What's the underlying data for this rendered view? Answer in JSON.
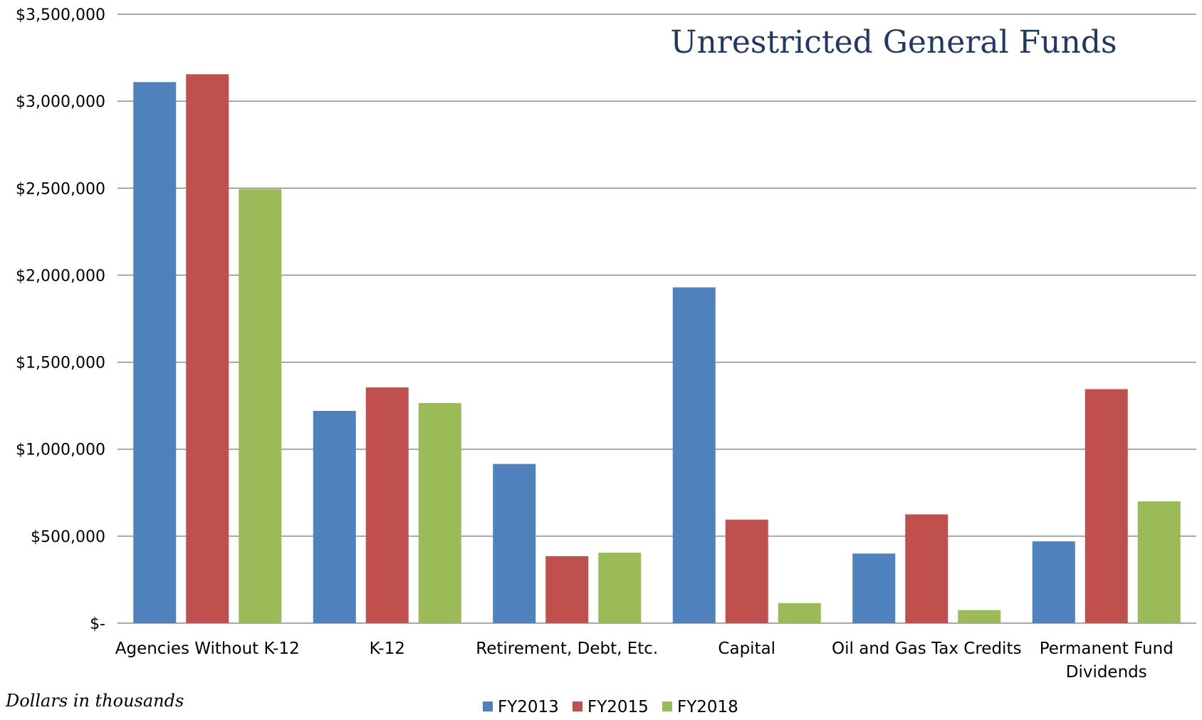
{
  "chart_data": {
    "type": "bar",
    "title": "Unrestricted General Funds",
    "footnote": "Dollars in thousands",
    "ylim": [
      0,
      3500000
    ],
    "yticks": [
      {
        "value": 0,
        "label": "$-"
      },
      {
        "value": 500000,
        "label": "$500,000"
      },
      {
        "value": 1000000,
        "label": "$1,000,000"
      },
      {
        "value": 1500000,
        "label": "$1,500,000"
      },
      {
        "value": 2000000,
        "label": "$2,000,000"
      },
      {
        "value": 2500000,
        "label": "$2,500,000"
      },
      {
        "value": 3000000,
        "label": "$3,000,000"
      },
      {
        "value": 3500000,
        "label": "$3,500,000"
      }
    ],
    "grid": true,
    "legend_position": "bottom",
    "categories": [
      "Agencies Without K-12",
      "K-12",
      "Retirement, Debt, Etc.",
      "Capital",
      "Oil and Gas Tax Credits",
      "Permanent Fund Dividends"
    ],
    "category_lines": [
      [
        "Agencies Without K-12"
      ],
      [
        "K-12"
      ],
      [
        "Retirement, Debt, Etc."
      ],
      [
        "Capital"
      ],
      [
        "Oil and Gas Tax Credits"
      ],
      [
        "Permanent Fund",
        "Dividends"
      ]
    ],
    "series": [
      {
        "name": "FY2013",
        "color": "#4f81bd",
        "values": [
          3110000,
          1220000,
          915000,
          1930000,
          400000,
          470000
        ]
      },
      {
        "name": "FY2015",
        "color": "#c0504d",
        "values": [
          3155000,
          1355000,
          385000,
          595000,
          625000,
          1345000
        ]
      },
      {
        "name": "FY2018",
        "color": "#9bbb59",
        "values": [
          2495000,
          1265000,
          405000,
          115000,
          75000,
          700000
        ]
      }
    ],
    "colors": {
      "grid": "#8c8c8c",
      "title": "#1f3864"
    }
  }
}
